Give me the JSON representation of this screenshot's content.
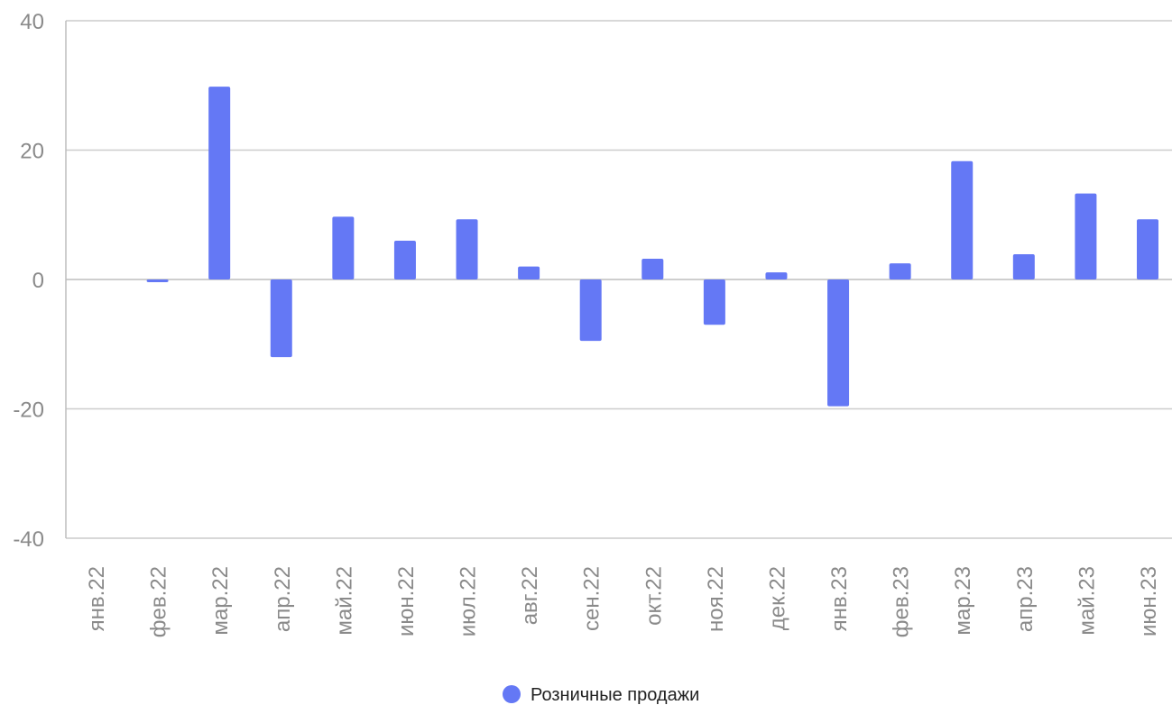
{
  "chart_data": {
    "type": "bar",
    "categories": [
      "янв.22",
      "фев.22",
      "мар.22",
      "апр.22",
      "май.22",
      "июн.22",
      "июл.22",
      "авг.22",
      "сен.22",
      "окт.22",
      "ноя.22",
      "дек.22",
      "янв.23",
      "фев.23",
      "мар.23",
      "апр.23",
      "май.23",
      "июн.23"
    ],
    "series": [
      {
        "name": "Розничные продажи",
        "values": [
          0,
          -0.2,
          29.8,
          -12.0,
          9.7,
          6.0,
          9.3,
          2.0,
          -9.5,
          3.2,
          -7.0,
          1.1,
          -19.6,
          2.5,
          18.3,
          3.9,
          13.3,
          9.3
        ]
      }
    ],
    "ylim": [
      -40,
      40
    ],
    "yticks": [
      40,
      20,
      0,
      -20,
      -40
    ],
    "grid": true,
    "legend_position": "bottom",
    "title": "",
    "xlabel": "",
    "ylabel": "",
    "colors": {
      "bar": "#6478f5",
      "grid": "#cccccc",
      "axis": "#bdbdbd",
      "tick_text": "#8a8a8a"
    }
  }
}
